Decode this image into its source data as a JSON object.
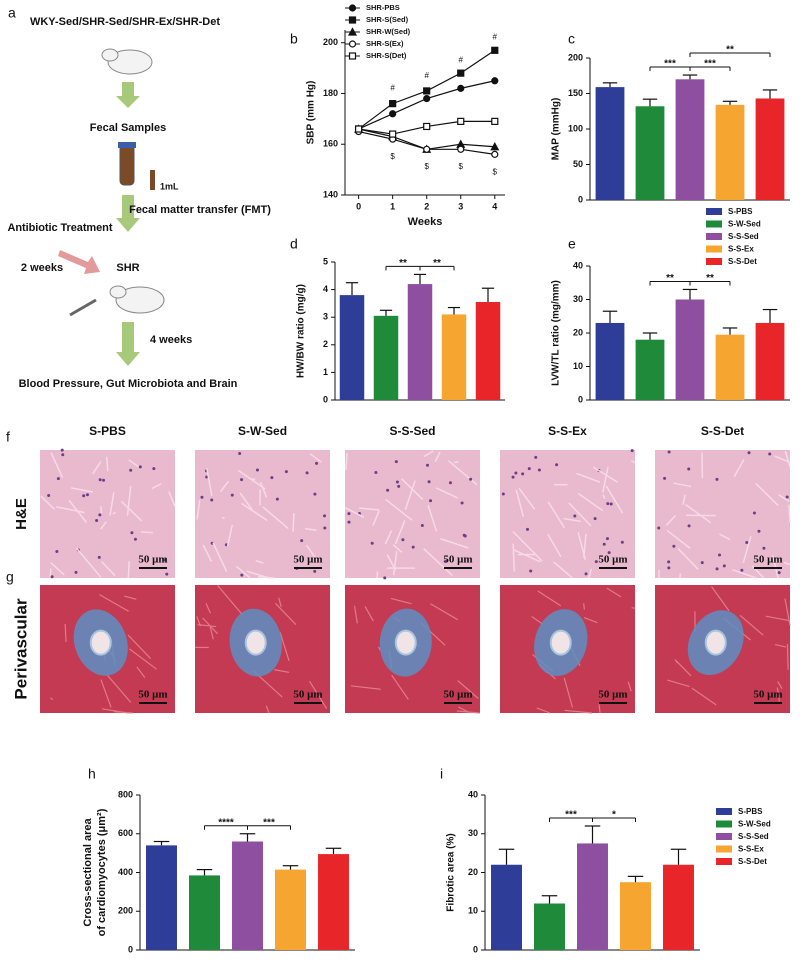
{
  "diagram": {
    "panel": "a",
    "groups": "WKY-Sed/SHR-Sed/SHR-Ex/SHR-Det",
    "samples": "Fecal Samples",
    "volume": "1mL",
    "antibiotic": "Antibiotic Treatment",
    "fmt": "Fecal matter transfer (FMT)",
    "pre": "2 weeks",
    "host": "SHR",
    "post": "4 weeks",
    "outcome": "Blood Pressure, Gut Microbiota and Brain"
  },
  "histology": {
    "panels": [
      "f",
      "g"
    ],
    "columns": [
      "S-PBS",
      "S-W-Sed",
      "S-S-Sed",
      "S-S-Ex",
      "S-S-Det"
    ],
    "rows": [
      "H&E",
      "Perivascular"
    ],
    "scale": "50 μm"
  },
  "chart_data": [
    {
      "type": "line",
      "panel": "b",
      "xlabel": "Weeks",
      "ylabel": "SBP (mm Hg)",
      "x": [
        0,
        1,
        2,
        3,
        4
      ],
      "xlim": [
        -0.4,
        4.3
      ],
      "xticks": [
        0,
        1,
        2,
        3,
        4
      ],
      "ylim": [
        140,
        205
      ],
      "yticks": [
        140,
        160,
        180,
        200
      ],
      "series": [
        {
          "name": "SHR-PBS",
          "marker": "circle",
          "filled": true,
          "color": "#111111",
          "values": [
            166,
            172,
            178,
            182,
            185
          ]
        },
        {
          "name": "SHR-S(Sed)",
          "marker": "square",
          "filled": true,
          "color": "#111111",
          "values": [
            166,
            176,
            181,
            188,
            197
          ]
        },
        {
          "name": "SHR-W(Sed)",
          "marker": "triangle",
          "filled": true,
          "color": "#111111",
          "values": [
            166,
            163,
            158,
            160,
            159
          ]
        },
        {
          "name": "SHR-S(Ex)",
          "marker": "circle",
          "filled": false,
          "color": "#111111",
          "values": [
            165,
            162,
            158,
            158,
            156
          ]
        },
        {
          "name": "SHR-S(Det)",
          "marker": "square",
          "filled": false,
          "color": "#111111",
          "values": [
            166,
            164,
            167,
            169,
            169
          ]
        }
      ],
      "annotations": [
        {
          "text": "#",
          "x": 1,
          "y": 182
        },
        {
          "text": "#",
          "x": 2,
          "y": 187
        },
        {
          "text": "#",
          "x": 3,
          "y": 193
        },
        {
          "text": "#",
          "x": 4,
          "y": 202
        },
        {
          "text": "$",
          "x": 1,
          "y": 155
        },
        {
          "text": "$",
          "x": 2,
          "y": 151
        },
        {
          "text": "$",
          "x": 3,
          "y": 151
        },
        {
          "text": "$",
          "x": 4,
          "y": 149
        }
      ]
    },
    {
      "type": "bar",
      "panel": "c",
      "ylabel": "MAP (mmHg)",
      "categories": [
        "S-PBS",
        "S-W-Sed",
        "S-S-Sed",
        "S-S-Ex",
        "S-S-Det"
      ],
      "colors": [
        "#2e3d98",
        "#1f8a3a",
        "#8e4fa0",
        "#f7a531",
        "#e8262a"
      ],
      "values": [
        159,
        132,
        170,
        134,
        143
      ],
      "errors": [
        6,
        10,
        6,
        5,
        12
      ],
      "ylim": [
        0,
        200
      ],
      "yticks": [
        0,
        50,
        100,
        150,
        200
      ],
      "legend": true,
      "significance": [
        {
          "from": 1,
          "to": 2,
          "label": "***"
        },
        {
          "from": 2,
          "to": 3,
          "label": "***"
        },
        {
          "from": 2,
          "to": 4,
          "label": "**"
        }
      ]
    },
    {
      "type": "bar",
      "panel": "d",
      "ylabel": "HW/BW ratio (mg/g)",
      "categories": [
        "S-PBS",
        "S-W-Sed",
        "S-S-Sed",
        "S-S-Ex",
        "S-S-Det"
      ],
      "colors": [
        "#2e3d98",
        "#1f8a3a",
        "#8e4fa0",
        "#f7a531",
        "#e8262a"
      ],
      "values": [
        3.8,
        3.05,
        4.2,
        3.1,
        3.55
      ],
      "errors": [
        0.45,
        0.2,
        0.35,
        0.25,
        0.5
      ],
      "ylim": [
        0,
        5
      ],
      "yticks": [
        0,
        1,
        2,
        3,
        4,
        5
      ],
      "legend": false,
      "significance": [
        {
          "from": 1,
          "to": 2,
          "label": "**"
        },
        {
          "from": 2,
          "to": 3,
          "label": "**"
        }
      ]
    },
    {
      "type": "bar",
      "panel": "e",
      "ylabel": "LVW/TL ratio (mg/mm)",
      "categories": [
        "S-PBS",
        "S-W-Sed",
        "S-S-Sed",
        "S-S-Ex",
        "S-S-Det"
      ],
      "colors": [
        "#2e3d98",
        "#1f8a3a",
        "#8e4fa0",
        "#f7a531",
        "#e8262a"
      ],
      "values": [
        23,
        18,
        30,
        19.5,
        23
      ],
      "errors": [
        3.5,
        2,
        3,
        2,
        4
      ],
      "ylim": [
        0,
        40
      ],
      "yticks": [
        0,
        10,
        20,
        30,
        40
      ],
      "legend": false,
      "significance": [
        {
          "from": 1,
          "to": 2,
          "label": "**"
        },
        {
          "from": 2,
          "to": 3,
          "label": "**"
        }
      ]
    },
    {
      "type": "bar",
      "panel": "h",
      "ylabel": [
        "Cross-sectional area",
        "of cardiomyocytes (μm²)"
      ],
      "categories": [
        "S-PBS",
        "S-W-Sed",
        "S-S-Sed",
        "S-S-Ex",
        "S-S-Det"
      ],
      "colors": [
        "#2e3d98",
        "#1f8a3a",
        "#8e4fa0",
        "#f7a531",
        "#e8262a"
      ],
      "values": [
        540,
        385,
        560,
        415,
        495
      ],
      "errors": [
        20,
        30,
        40,
        20,
        30
      ],
      "ylim": [
        0,
        800
      ],
      "yticks": [
        0,
        200,
        400,
        600,
        800
      ],
      "legend": false,
      "significance": [
        {
          "from": 1,
          "to": 2,
          "label": "****"
        },
        {
          "from": 2,
          "to": 3,
          "label": "***"
        }
      ]
    },
    {
      "type": "bar",
      "panel": "i",
      "ylabel": "Fibrotic area (%)",
      "categories": [
        "S-PBS",
        "S-W-Sed",
        "S-S-Sed",
        "S-S-Ex",
        "S-S-Det"
      ],
      "colors": [
        "#2e3d98",
        "#1f8a3a",
        "#8e4fa0",
        "#f7a531",
        "#e8262a"
      ],
      "values": [
        22,
        12,
        27.5,
        17.5,
        22
      ],
      "errors": [
        4,
        2,
        4.5,
        1.5,
        4
      ],
      "ylim": [
        0,
        40
      ],
      "yticks": [
        0,
        10,
        20,
        30,
        40
      ],
      "legend": true,
      "significance": [
        {
          "from": 1,
          "to": 2,
          "label": "***"
        },
        {
          "from": 2,
          "to": 3,
          "label": "*"
        }
      ]
    }
  ]
}
